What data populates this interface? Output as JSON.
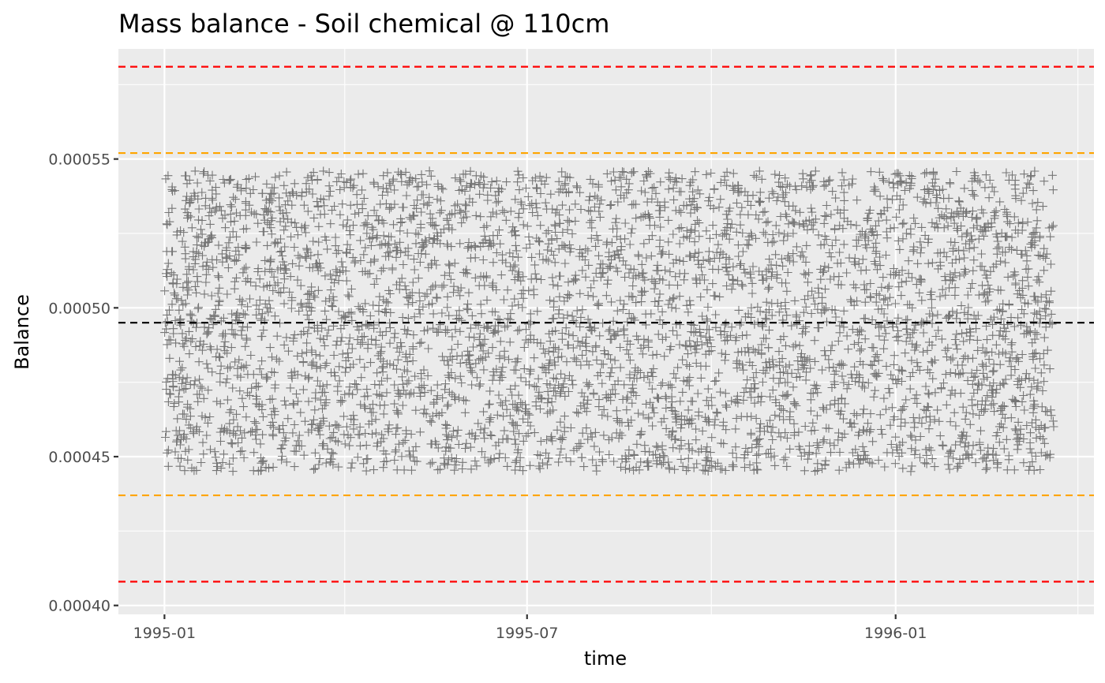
{
  "chart_data": {
    "type": "scatter",
    "title": "Mass balance - Soil chemical @ 110cm",
    "xlabel": "time",
    "ylabel": "Balance",
    "x_range": [
      "1994-12-09",
      "1996-04-09"
    ],
    "x_ticks": [
      {
        "date": "1995-01-01",
        "label": "1995-01"
      },
      {
        "date": "1995-07-01",
        "label": "1995-07"
      },
      {
        "date": "1996-01-01",
        "label": "1996-01"
      }
    ],
    "x_minor_ticks": [
      "1995-04-01",
      "1995-10-01",
      "1996-04-01"
    ],
    "ylim": [
      0.000397,
      0.000587
    ],
    "y_ticks": [
      {
        "value": 0.0004,
        "label": "0.00040"
      },
      {
        "value": 0.00045,
        "label": "0.00045"
      },
      {
        "value": 0.0005,
        "label": "0.00050"
      },
      {
        "value": 0.00055,
        "label": "0.00055"
      }
    ],
    "y_minor_ticks": [
      0.000425,
      0.000475,
      0.000525,
      0.000575
    ],
    "points": {
      "marker": "cross",
      "color": "#000000",
      "opacity": 0.5,
      "x_start": "1995-01-01",
      "x_end": "1996-03-20",
      "y_min": 0.000445,
      "y_max": 0.000546,
      "count": 4400
    },
    "reference_lines": [
      {
        "value": 0.000581,
        "color": "#ff0000",
        "style": "dashed"
      },
      {
        "value": 0.000552,
        "color": "#ffa500",
        "style": "dashed"
      },
      {
        "value": 0.000495,
        "color": "#000000",
        "style": "dashed"
      },
      {
        "value": 0.000437,
        "color": "#ffa500",
        "style": "dashed"
      },
      {
        "value": 0.000408,
        "color": "#ff0000",
        "style": "dashed"
      }
    ],
    "panel_background": "#ebebeb",
    "grid": true,
    "legend": "none"
  }
}
